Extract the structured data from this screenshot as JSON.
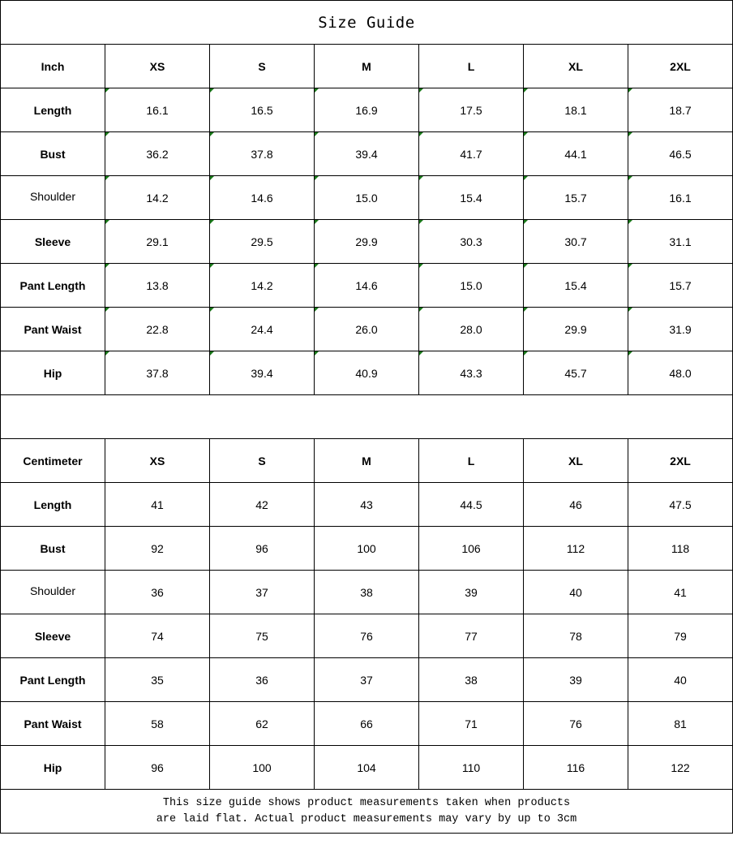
{
  "title": "Size Guide",
  "inch_table": {
    "unit": "Inch",
    "sizes": [
      "XS",
      "S",
      "M",
      "L",
      "XL",
      "2XL"
    ],
    "rows": [
      {
        "label": "Length",
        "values": [
          "16.1",
          "16.5",
          "16.9",
          "17.5",
          "18.1",
          "18.7"
        ]
      },
      {
        "label": "Bust",
        "values": [
          "36.2",
          "37.8",
          "39.4",
          "41.7",
          "44.1",
          "46.5"
        ]
      },
      {
        "label": "Shoulder",
        "values": [
          "14.2",
          "14.6",
          "15.0",
          "15.4",
          "15.7",
          "16.1"
        ]
      },
      {
        "label": "Sleeve",
        "values": [
          "29.1",
          "29.5",
          "29.9",
          "30.3",
          "30.7",
          "31.1"
        ]
      },
      {
        "label": "Pant Length",
        "values": [
          "13.8",
          "14.2",
          "14.6",
          "15.0",
          "15.4",
          "15.7"
        ]
      },
      {
        "label": "Pant Waist",
        "values": [
          "22.8",
          "24.4",
          "26.0",
          "28.0",
          "29.9",
          "31.9"
        ]
      },
      {
        "label": "Hip",
        "values": [
          "37.8",
          "39.4",
          "40.9",
          "43.3",
          "45.7",
          "48.0"
        ]
      }
    ]
  },
  "cm_table": {
    "unit": "Centimeter",
    "sizes": [
      "XS",
      "S",
      "M",
      "L",
      "XL",
      "2XL"
    ],
    "rows": [
      {
        "label": "Length",
        "values": [
          "41",
          "42",
          "43",
          "44.5",
          "46",
          "47.5"
        ]
      },
      {
        "label": "Bust",
        "values": [
          "92",
          "96",
          "100",
          "106",
          "112",
          "118"
        ]
      },
      {
        "label": "Shoulder",
        "values": [
          "36",
          "37",
          "38",
          "39",
          "40",
          "41"
        ]
      },
      {
        "label": "Sleeve",
        "values": [
          "74",
          "75",
          "76",
          "77",
          "78",
          "79"
        ]
      },
      {
        "label": "Pant Length",
        "values": [
          "35",
          "36",
          "37",
          "38",
          "39",
          "40"
        ]
      },
      {
        "label": "Pant Waist",
        "values": [
          "58",
          "62",
          "66",
          "71",
          "76",
          "81"
        ]
      },
      {
        "label": "Hip",
        "values": [
          "96",
          "100",
          "104",
          "110",
          "116",
          "122"
        ]
      }
    ]
  },
  "note": {
    "line1": "This size guide shows product measurements taken when products",
    "line2": "are laid flat. Actual product measurements may vary by up to 3cm"
  },
  "colors": {
    "corner_mark": "#1a7a1a"
  }
}
